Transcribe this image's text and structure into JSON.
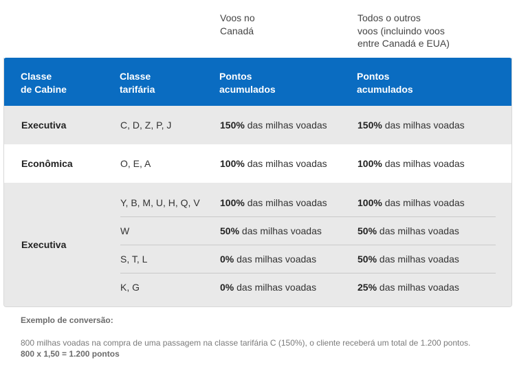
{
  "top_headers": {
    "canada": [
      "Voos no",
      "Canadá"
    ],
    "outros": [
      "Todos o outros",
      "voos (incluindo voos",
      "entre Canadá e EUA)"
    ]
  },
  "header": {
    "classe_cabine": [
      "Classe",
      "de Cabine"
    ],
    "classe_tarifaria": [
      "Classe",
      "tarifária"
    ],
    "pontos_canada": [
      "Pontos",
      "acumulados"
    ],
    "pontos_outros": [
      "Pontos",
      "acumulados"
    ]
  },
  "suffix": " das milhas voadas",
  "rows": [
    {
      "cabine": "Executiva",
      "tarifas": "C, D, Z, P, J",
      "canada_pct": "150%",
      "outros_pct": "150%"
    },
    {
      "cabine": "Econômica",
      "tarifas": "O, E, A",
      "canada_pct": "100%",
      "outros_pct": "100%"
    }
  ],
  "group": {
    "cabine": "Executiva",
    "items": [
      {
        "tarifas": "Y, B, M, U, H, Q, V",
        "canada_pct": "100%",
        "outros_pct": "100%"
      },
      {
        "tarifas": "W",
        "canada_pct": "50%",
        "outros_pct": "50%"
      },
      {
        "tarifas": "S, T, L",
        "canada_pct": "0%",
        "outros_pct": "50%"
      },
      {
        "tarifas": "K, G",
        "canada_pct": "0%",
        "outros_pct": "25%"
      }
    ]
  },
  "footer": {
    "title": "Exemplo de conversão:",
    "text": "800 milhas voadas na compra de uma passagem na classe tarifária C (150%), o cliente receberá um total de 1.200 pontos.",
    "calc": "800 x 1,50 = 1.200 pontos"
  },
  "colors": {
    "header_bg": "#0a6cc1",
    "row_gray": "#e9e9e9"
  }
}
